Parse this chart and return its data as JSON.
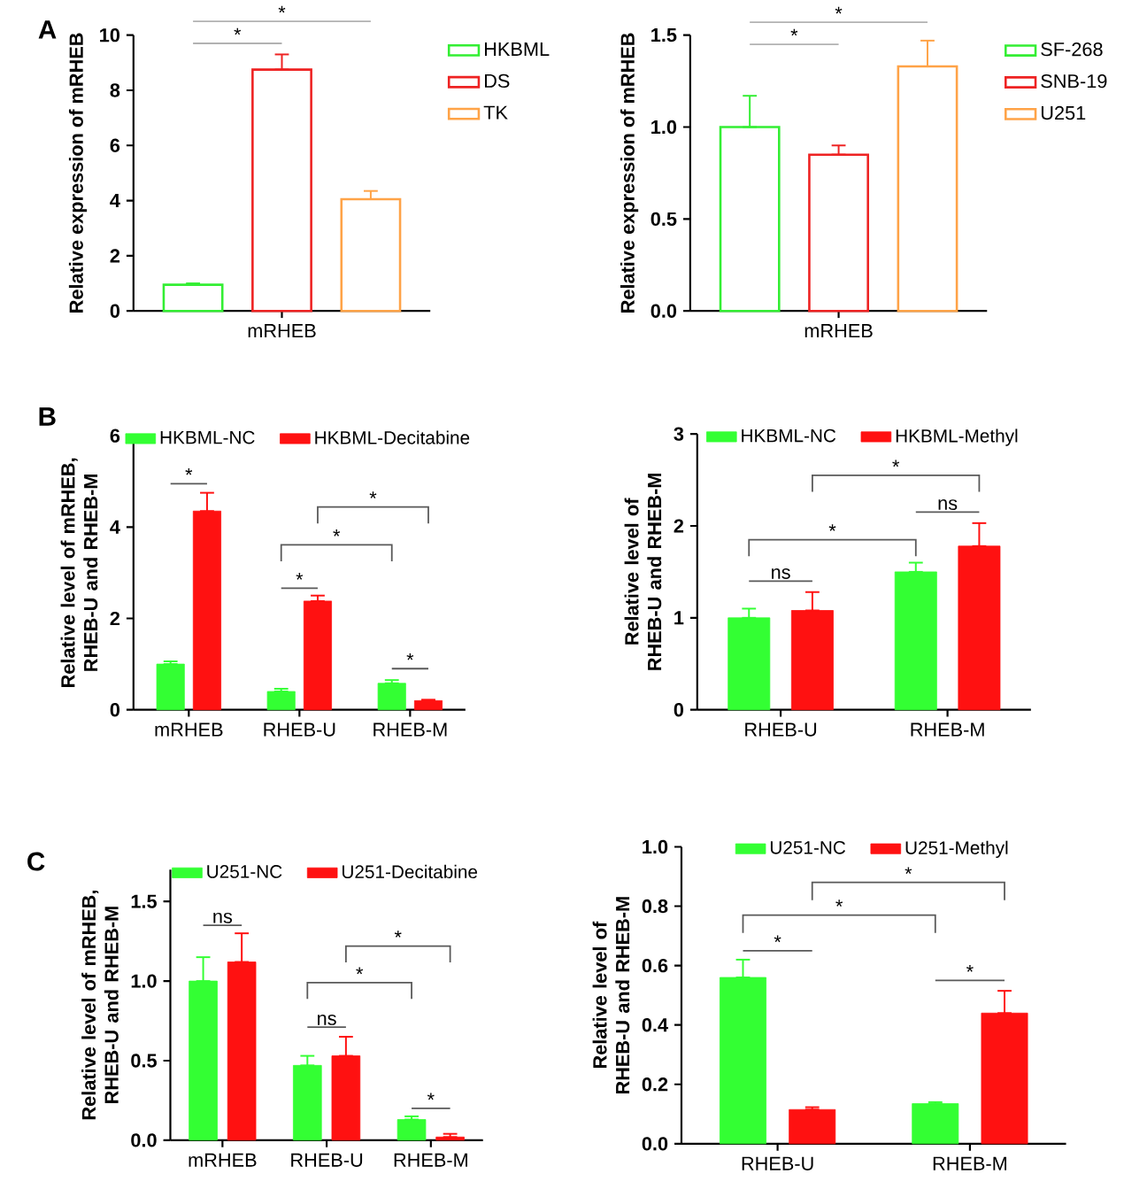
{
  "chart_data": [
    {
      "type": "bar",
      "ylabel": "Relative expression of mRHEB",
      "categories": [
        null,
        "mRHEB",
        null
      ],
      "ylim": [
        0,
        10
      ],
      "yticks": [
        0,
        2,
        4,
        6,
        8,
        10
      ],
      "legend": "right",
      "annotations": [
        "A",
        "*",
        "*"
      ],
      "series": [
        {
          "name": "HKBML",
          "color": "#33ee33",
          "values": [
            0.95,
            null,
            null
          ],
          "errors": [
            [
              0.95,
              1.0
            ],
            null,
            null
          ]
        },
        {
          "name": "DS",
          "color": "#ee2222",
          "values": [
            null,
            8.75,
            null
          ],
          "errors": [
            null,
            [
              8.75,
              9.3
            ],
            null
          ]
        },
        {
          "name": "TK",
          "color": "#ffa347",
          "values": [
            null,
            null,
            4.05
          ],
          "errors": [
            null,
            null,
            [
              4.05,
              4.35
            ]
          ]
        }
      ]
    },
    {
      "type": "bar",
      "ylabel": "Relative expression of mRHEB",
      "categories": [
        null,
        "mRHEB",
        null
      ],
      "ylim": [
        0,
        1.5
      ],
      "yticks": [
        {
          "value": 0,
          "label": "0.0"
        },
        {
          "value": 0.5,
          "label": "0.5"
        },
        {
          "value": 1,
          "label": "1.0"
        },
        {
          "value": 1.5,
          "label": "1.5"
        }
      ],
      "legend": "right",
      "annotations": [
        "*",
        "*"
      ],
      "series": [
        {
          "name": "SF-268",
          "color": "#33ee33",
          "values": [
            1.0,
            null,
            null
          ],
          "errors": [
            [
              1.0,
              1.17
            ],
            null,
            null
          ]
        },
        {
          "name": "SNB-19",
          "color": "#ee2222",
          "values": [
            null,
            0.85,
            null
          ],
          "errors": [
            null,
            [
              0.85,
              0.9
            ],
            null
          ]
        },
        {
          "name": "U251",
          "color": "#ffa347",
          "values": [
            null,
            null,
            1.33
          ],
          "errors": [
            null,
            null,
            [
              1.33,
              1.47
            ]
          ]
        }
      ]
    },
    {
      "type": "bar",
      "ylabel": "Relative level of mRHEB, RHEB-U and RHEB-M",
      "categories": [
        "mRHEB",
        "RHEB-U",
        "RHEB-M"
      ],
      "ylim": [
        0,
        6
      ],
      "yticks": [
        0,
        2,
        4,
        6
      ],
      "legend": "top",
      "annotations": [
        "B",
        "*",
        "*",
        "*",
        "*",
        "*"
      ],
      "series": [
        {
          "name": "HKBML-NC",
          "color": "#33ff33",
          "values": [
            1.0,
            0.4,
            0.58
          ],
          "errors": [
            [
              1.0,
              1.06
            ],
            [
              0.4,
              0.46
            ],
            [
              0.58,
              0.65
            ]
          ]
        },
        {
          "name": "HKBML-Decitabine",
          "color": "#ff1111",
          "values": [
            4.35,
            2.38,
            0.2
          ],
          "errors": [
            [
              4.35,
              4.75
            ],
            [
              2.38,
              2.5
            ],
            [
              0.2,
              0.22
            ]
          ]
        }
      ]
    },
    {
      "type": "bar",
      "ylabel": "Relative level of RHEB-U and RHEB-M",
      "categories": [
        "RHEB-U",
        "RHEB-M"
      ],
      "ylim": [
        0,
        3
      ],
      "yticks": [
        0,
        1,
        2,
        3
      ],
      "legend": "top",
      "annotations": [
        "ns",
        "*",
        "ns",
        "*"
      ],
      "series": [
        {
          "name": "HKBML-NC",
          "color": "#33ff33",
          "values": [
            1.0,
            1.5
          ],
          "errors": [
            [
              1.0,
              1.1
            ],
            [
              1.5,
              1.6
            ]
          ]
        },
        {
          "name": "HKBML-Methyl",
          "color": "#ff1111",
          "values": [
            1.08,
            1.78
          ],
          "errors": [
            [
              1.08,
              1.28
            ],
            [
              1.78,
              2.03
            ]
          ]
        }
      ]
    },
    {
      "type": "bar",
      "ylabel": "Relative level of mRHEB, RHEB-U and RHEB-M",
      "categories": [
        "mRHEB",
        "RHEB-U",
        "RHEB-M"
      ],
      "ylim": [
        0,
        1.7
      ],
      "yticks": [
        {
          "value": 0,
          "label": "0.0"
        },
        {
          "value": 0.5,
          "label": "0.5"
        },
        {
          "value": 1,
          "label": "1.0"
        },
        {
          "value": 1.5,
          "label": "1.5"
        }
      ],
      "legend": "top",
      "annotations": [
        "C",
        "ns",
        "*",
        "*",
        "ns",
        "*"
      ],
      "series": [
        {
          "name": "U251-NC",
          "color": "#33ff33",
          "values": [
            1.0,
            0.47,
            0.13
          ],
          "errors": [
            [
              1.0,
              1.15
            ],
            [
              0.47,
              0.53
            ],
            [
              0.13,
              0.15
            ]
          ]
        },
        {
          "name": "U251-Decitabine",
          "color": "#ff1111",
          "values": [
            1.12,
            0.53,
            0.02
          ],
          "errors": [
            [
              1.12,
              1.3
            ],
            [
              0.53,
              0.65
            ],
            [
              0.02,
              0.04
            ]
          ]
        }
      ]
    },
    {
      "type": "bar",
      "ylabel": "Relative level of RHEB-U and RHEB-M",
      "categories": [
        "RHEB-U",
        "RHEB-M"
      ],
      "ylim": [
        0,
        1.0
      ],
      "yticks": [
        {
          "value": 0,
          "label": "0.0"
        },
        {
          "value": 0.2,
          "label": "0.2"
        },
        {
          "value": 0.4,
          "label": "0.4"
        },
        {
          "value": 0.6,
          "label": "0.6"
        },
        {
          "value": 0.8,
          "label": "0.8"
        },
        {
          "value": 1,
          "label": "1.0"
        }
      ],
      "legend": "top",
      "annotations": [
        "*",
        "*",
        "*",
        "*"
      ],
      "series": [
        {
          "name": "U251-NC",
          "color": "#33ff33",
          "values": [
            0.56,
            0.135
          ],
          "errors": [
            [
              0.56,
              0.62
            ],
            [
              0.135,
              0.14
            ]
          ]
        },
        {
          "name": "U251-Methyl",
          "color": "#ff1111",
          "values": [
            0.115,
            0.44
          ],
          "errors": [
            [
              0.115,
              0.123
            ],
            [
              0.44,
              0.515
            ]
          ]
        }
      ]
    }
  ]
}
